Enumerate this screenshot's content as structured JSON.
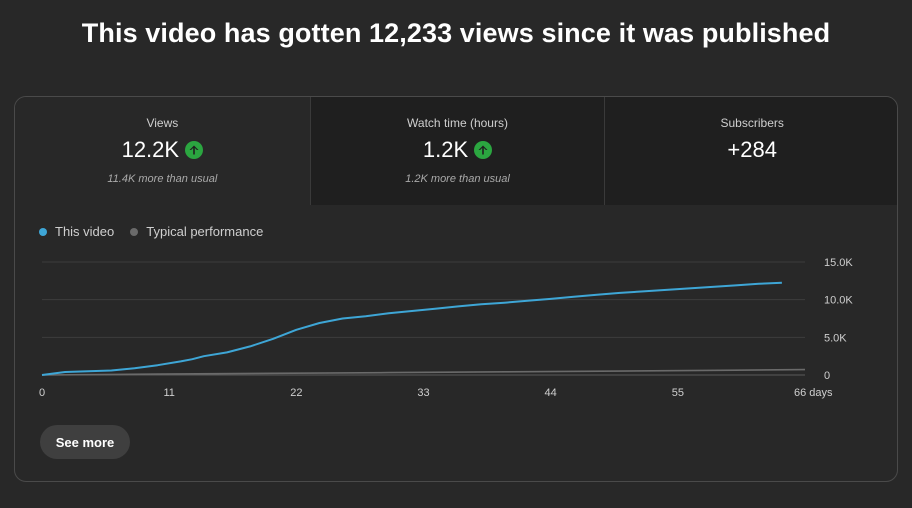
{
  "headline": "This video has gotten 12,233 views since it was published",
  "metrics": [
    {
      "label": "Views",
      "value": "12.2K",
      "trend_icon": "arrow-up-icon",
      "sub": "11.4K more than usual"
    },
    {
      "label": "Watch time (hours)",
      "value": "1.2K",
      "trend_icon": "arrow-up-icon",
      "sub": "1.2K more than usual"
    },
    {
      "label": "Subscribers",
      "value": "+284",
      "sub": ""
    }
  ],
  "legend": [
    {
      "label": "This video",
      "color": "#3ea6d6"
    },
    {
      "label": "Typical performance",
      "color": "#6a6a6a"
    }
  ],
  "chart_data": {
    "type": "line",
    "x_ticks": [
      "0",
      "11",
      "22",
      "33",
      "44",
      "55",
      "66 days"
    ],
    "x_tick_values": [
      0,
      11,
      22,
      33,
      44,
      55,
      66
    ],
    "y_ticks": [
      "0",
      "5.0K",
      "10.0K",
      "15.0K"
    ],
    "y_tick_values": [
      0,
      5000,
      10000,
      15000
    ],
    "xlim": [
      0,
      66
    ],
    "ylim": [
      0,
      15000
    ],
    "grid": true,
    "legend_position": "top-left",
    "series": [
      {
        "name": "This video",
        "color": "#3ea6d6",
        "x": [
          0,
          2,
          4,
          6,
          8,
          10,
          12,
          13,
          14,
          16,
          18,
          20,
          22,
          24,
          26,
          28,
          30,
          32,
          34,
          36,
          38,
          40,
          42,
          44,
          46,
          48,
          50,
          52,
          54,
          56,
          58,
          60,
          62,
          64
        ],
        "y": [
          0,
          400,
          500,
          600,
          900,
          1300,
          1800,
          2100,
          2500,
          3000,
          3800,
          4800,
          6000,
          6900,
          7500,
          7800,
          8200,
          8500,
          8800,
          9100,
          9400,
          9600,
          9850,
          10100,
          10400,
          10650,
          10900,
          11100,
          11300,
          11500,
          11700,
          11900,
          12100,
          12233
        ]
      },
      {
        "name": "Typical performance",
        "color": "#6a6a6a",
        "x": [
          0,
          10,
          20,
          30,
          40,
          50,
          60,
          66
        ],
        "y": [
          0,
          120,
          220,
          320,
          420,
          520,
          640,
          720
        ]
      }
    ]
  },
  "see_more_label": "See more"
}
